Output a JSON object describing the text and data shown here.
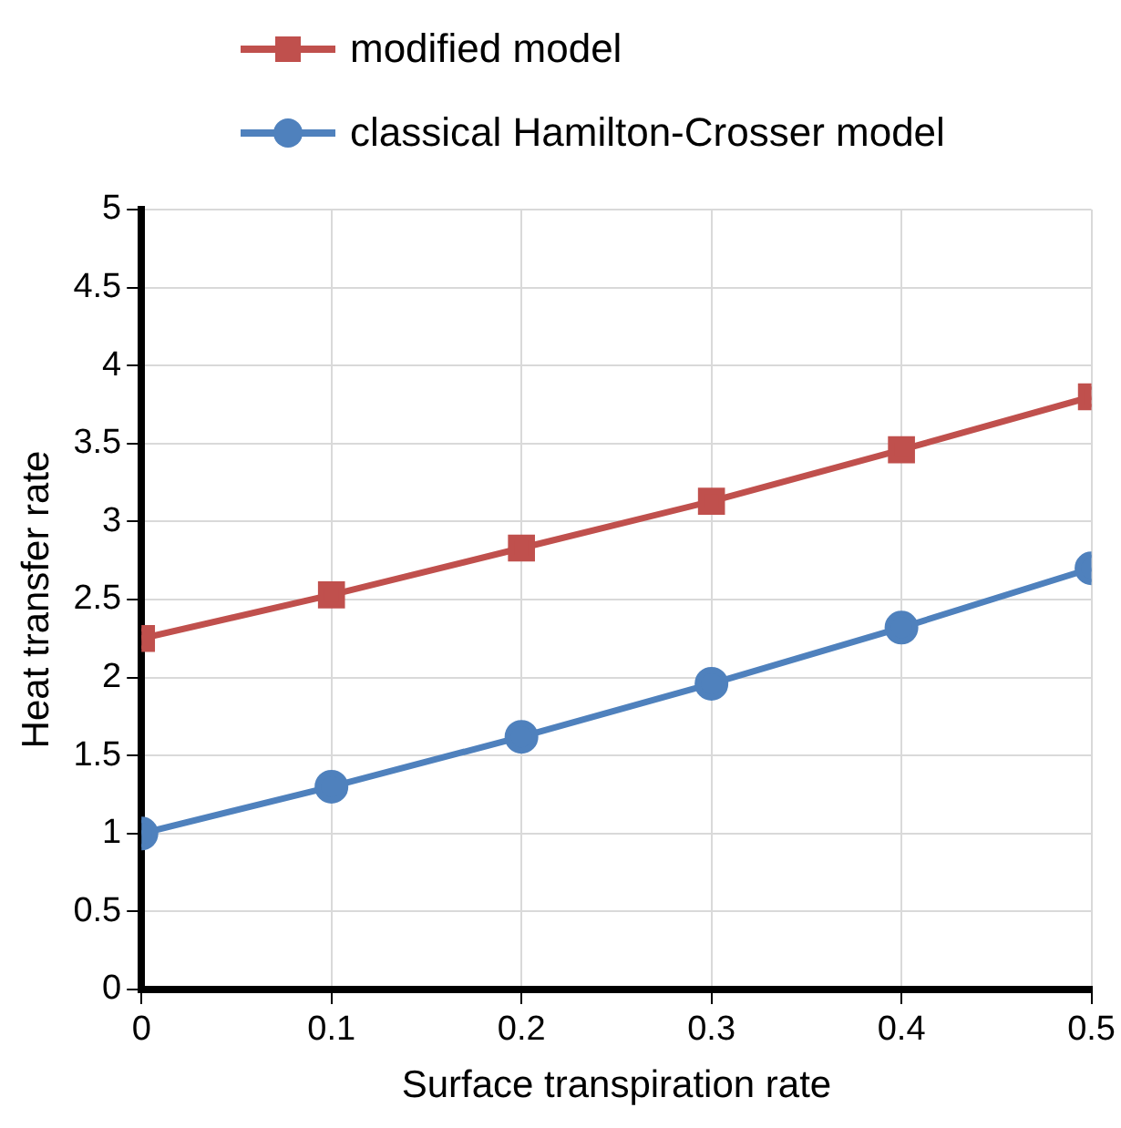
{
  "chart_data": {
    "type": "line",
    "xlabel": "Surface transpiration rate",
    "ylabel": "Heat transfer rate",
    "x": [
      0,
      0.1,
      0.2,
      0.3,
      0.4,
      0.5
    ],
    "xlim": [
      0,
      0.5
    ],
    "xticks": [
      0,
      0.1,
      0.2,
      0.3,
      0.4,
      0.5
    ],
    "ylim": [
      0,
      5
    ],
    "yticks": [
      0,
      0.5,
      1,
      1.5,
      2,
      2.5,
      3,
      3.5,
      4,
      4.5,
      5
    ],
    "grid": true,
    "legend": "top left",
    "line_style": "solid",
    "series": [
      {
        "name": "modified model",
        "color": "#c0504d",
        "marker": "square",
        "values": [
          2.25,
          2.53,
          2.83,
          3.13,
          3.46,
          3.8
        ]
      },
      {
        "name": "classical Hamilton-Crosser model",
        "color": "#4f81bd",
        "marker": "circle",
        "values": [
          1.0,
          1.3,
          1.62,
          1.96,
          2.32,
          2.7
        ]
      }
    ]
  }
}
